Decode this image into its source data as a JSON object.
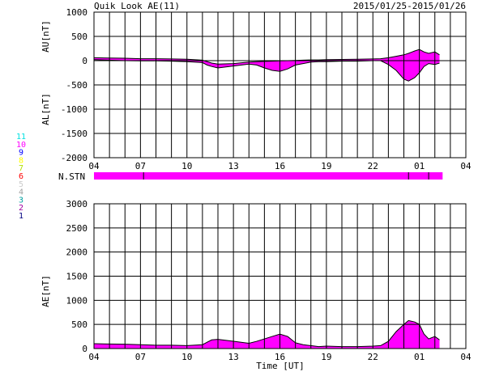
{
  "header": {
    "title": "Quik Look AE(11)",
    "date_range": "2015/01/25-2015/01/26"
  },
  "station_legend": {
    "items": [
      {
        "label": "11",
        "color": "#00e0e0"
      },
      {
        "label": "10",
        "color": "#ff00ff"
      },
      {
        "label": "9",
        "color": "#0000ff"
      },
      {
        "label": "8",
        "color": "#ffff00"
      },
      {
        "label": "7",
        "color": "#b0e000"
      },
      {
        "label": "6",
        "color": "#ff0000"
      },
      {
        "label": "5",
        "color": "#cccccc"
      },
      {
        "label": "4",
        "color": "#a0a0a0"
      },
      {
        "label": "3",
        "color": "#00a0a0"
      },
      {
        "label": "2",
        "color": "#a000a0"
      },
      {
        "label": "1",
        "color": "#000080"
      }
    ]
  },
  "nstn": {
    "label": "N.STN",
    "fill_color": "#ff00ff",
    "span_hours": [
      0,
      22.5
    ],
    "markers_hours": [
      3.2,
      20.3,
      21.6
    ]
  },
  "colors": {
    "fill": "#ff00ff",
    "outline": "#000000",
    "grid": "#000000"
  },
  "chart_data": [
    {
      "type": "area",
      "ylabel_top": "AU[nT]",
      "ylabel_bottom": "AL[nT]",
      "xlabel": "",
      "x_tick_labels": [
        "04",
        "07",
        "10",
        "13",
        "16",
        "19",
        "22",
        "01",
        "04"
      ],
      "x_tick_hours": [
        0,
        3,
        6,
        9,
        12,
        15,
        18,
        21,
        24
      ],
      "xlim": [
        0,
        24
      ],
      "y_ticks": [
        1000,
        500,
        0,
        -500,
        -1000,
        -1500,
        -2000
      ],
      "ylim": [
        -2000,
        1000
      ],
      "grid": true,
      "x": [
        0,
        1,
        2,
        3,
        4,
        5,
        6,
        7,
        7.3,
        7.6,
        8,
        9,
        10,
        10.5,
        11,
        11.5,
        12,
        12.5,
        13,
        13.5,
        14,
        14.5,
        15,
        16,
        17,
        18,
        18.5,
        19,
        19.5,
        20,
        20.3,
        20.7,
        21,
        21.3,
        21.6,
        22,
        22.3
      ],
      "series": [
        {
          "values": [
            60,
            55,
            50,
            40,
            40,
            35,
            30,
            10,
            -20,
            -50,
            -70,
            -60,
            -30,
            -20,
            -15,
            -10,
            -5,
            0,
            5,
            10,
            15,
            15,
            20,
            25,
            30,
            35,
            40,
            60,
            90,
            120,
            150,
            200,
            230,
            180,
            150,
            180,
            120
          ]
        },
        {
          "values": [
            20,
            10,
            0,
            -5,
            -5,
            -10,
            -20,
            -40,
            -90,
            -120,
            -150,
            -110,
            -70,
            -90,
            -150,
            -200,
            -220,
            -170,
            -90,
            -60,
            -30,
            -20,
            -20,
            -10,
            -10,
            0,
            0,
            -80,
            -200,
            -380,
            -420,
            -350,
            -250,
            -120,
            -60,
            -80,
            -50
          ]
        }
      ]
    },
    {
      "type": "area",
      "ylabel": "AE[nT]",
      "xlabel": "Time [UT]",
      "x_tick_labels": [
        "04",
        "07",
        "10",
        "13",
        "16",
        "19",
        "22",
        "01",
        "04"
      ],
      "x_tick_hours": [
        0,
        3,
        6,
        9,
        12,
        15,
        18,
        21,
        24
      ],
      "xlim": [
        0,
        24
      ],
      "y_ticks": [
        3000,
        2500,
        2000,
        1500,
        1000,
        500,
        0
      ],
      "ylim": [
        0,
        3000
      ],
      "grid": true,
      "x": [
        0,
        1,
        2,
        3,
        4,
        5,
        6,
        7,
        7.3,
        7.6,
        8,
        9,
        10,
        10.5,
        11,
        11.5,
        12,
        12.5,
        13,
        13.5,
        14,
        14.5,
        15,
        16,
        17,
        18,
        18.5,
        19,
        19.5,
        20,
        20.3,
        20.7,
        21,
        21.3,
        21.6,
        22,
        22.3
      ],
      "series": [
        {
          "values": [
            100,
            95,
            90,
            80,
            70,
            70,
            60,
            80,
            130,
            180,
            190,
            150,
            110,
            150,
            200,
            250,
            300,
            250,
            120,
            80,
            60,
            40,
            50,
            40,
            40,
            50,
            60,
            150,
            350,
            500,
            580,
            550,
            500,
            300,
            200,
            250,
            180
          ]
        }
      ]
    }
  ]
}
